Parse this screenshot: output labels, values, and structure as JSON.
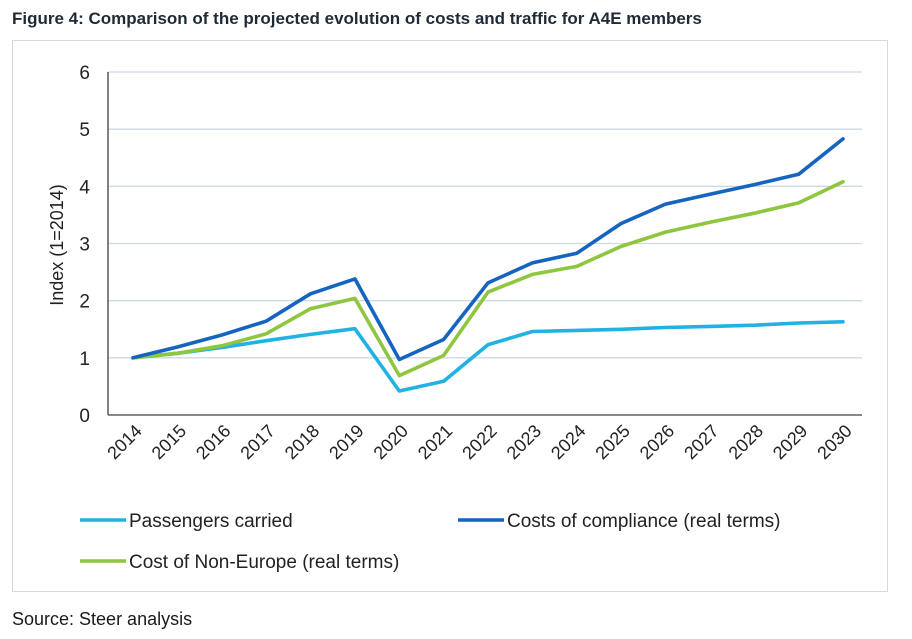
{
  "figure_title": "Figure 4: Comparison of the projected evolution of costs and traffic for A4E members",
  "source_text": "Source: Steer analysis",
  "chart_data": {
    "type": "line",
    "title": "Figure 4: Comparison of the projected evolution of costs and traffic for A4E members",
    "xlabel": "",
    "ylabel": "Index (1=2014)",
    "ylim": [
      0,
      6
    ],
    "yticks": [
      0,
      1,
      2,
      3,
      4,
      5,
      6
    ],
    "grid": true,
    "legend_position": "bottom",
    "x": [
      "2014",
      "2015",
      "2016",
      "2017",
      "2018",
      "2019",
      "2020",
      "2021",
      "2022",
      "2023",
      "2024",
      "2025",
      "2026",
      "2027",
      "2028",
      "2029",
      "2030"
    ],
    "series": [
      {
        "name": "Passengers carried",
        "color": "#21b2e3",
        "values": [
          1.0,
          1.08,
          1.18,
          1.3,
          1.41,
          1.51,
          0.42,
          0.59,
          1.23,
          1.46,
          1.48,
          1.5,
          1.53,
          1.55,
          1.57,
          1.61,
          1.63
        ]
      },
      {
        "name": "Costs of compliance (real terms)",
        "color": "#1565c0",
        "values": [
          1.0,
          1.19,
          1.4,
          1.64,
          2.12,
          2.38,
          0.97,
          1.32,
          2.31,
          2.66,
          2.83,
          3.35,
          3.69,
          3.86,
          4.03,
          4.21,
          4.83
        ]
      },
      {
        "name": "Cost of Non-Europe (real terms)",
        "color": "#8ec63f",
        "values": [
          1.0,
          1.08,
          1.21,
          1.42,
          1.86,
          2.04,
          0.69,
          1.04,
          2.15,
          2.46,
          2.6,
          2.95,
          3.2,
          3.37,
          3.53,
          3.71,
          4.08
        ]
      }
    ]
  }
}
